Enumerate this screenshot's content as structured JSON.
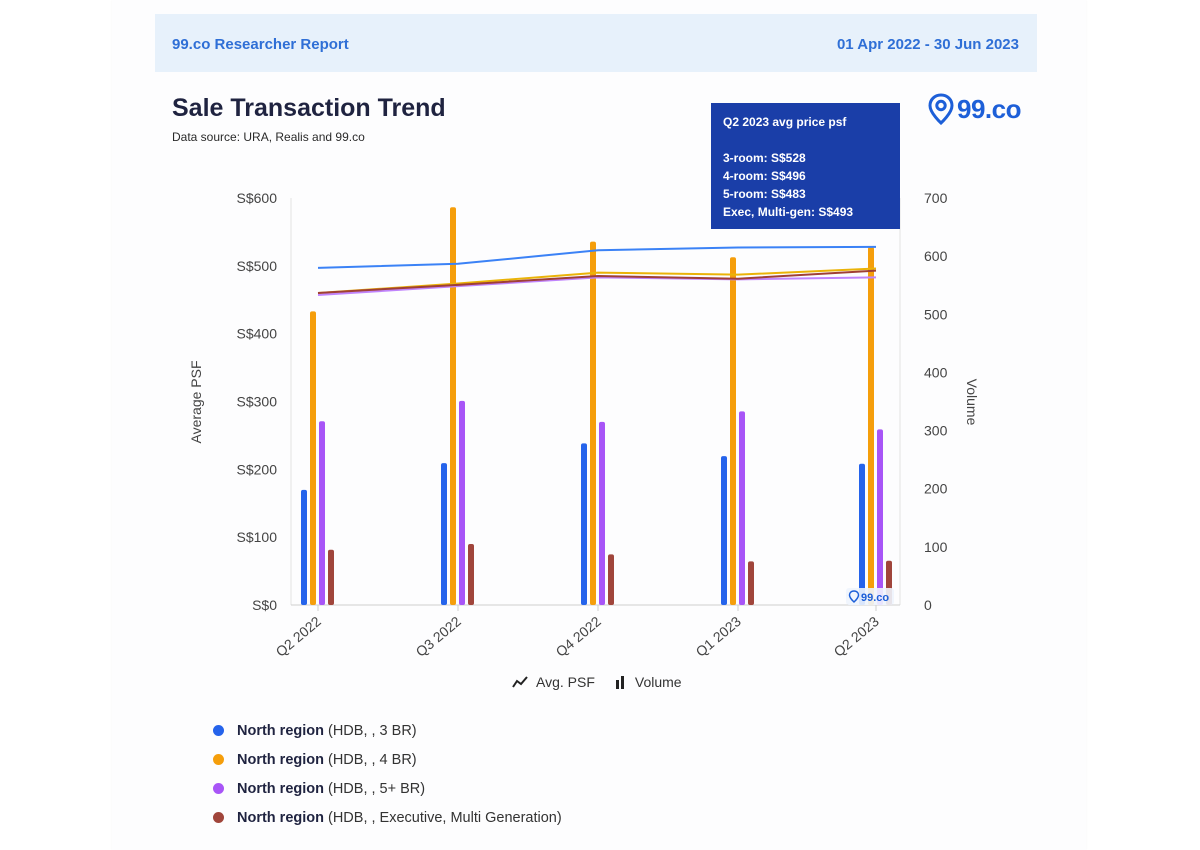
{
  "header": {
    "report_title": "99.co Researcher Report",
    "date_range": "01 Apr 2022 - 30 Jun 2023"
  },
  "logo": {
    "text": "99.co",
    "icon": "location-pin-icon",
    "color": "#1d5fd8"
  },
  "tooltip": {
    "heading": "Q2 2023 avg price psf",
    "lines": [
      "3-room: S$528",
      "4-room: S$496",
      "5-room: S$483",
      "Exec, Multi-gen: S$493"
    ]
  },
  "legend_types": {
    "line": "Avg. PSF",
    "bar": "Volume"
  },
  "series_legend": [
    {
      "region": "North region",
      "detail": "(HDB, , 3 BR)"
    },
    {
      "region": "North region",
      "detail": "(HDB, , 4 BR)"
    },
    {
      "region": "North region",
      "detail": "(HDB, , 5+ BR)"
    },
    {
      "region": "North region",
      "detail": "(HDB, , Executive, Multi Generation)"
    }
  ],
  "watermark": "99.co",
  "chart_data": {
    "type": "bar",
    "title": "Sale Transaction Trend",
    "subtitle": "Data source: URA, Realis and 99.co",
    "categories": [
      "Q2 2022",
      "Q3 2022",
      "Q4 2022",
      "Q1 2023",
      "Q2 2023"
    ],
    "y_left": {
      "label": "Average PSF",
      "range": [
        0,
        600
      ],
      "ticks": [
        "S$0",
        "S$100",
        "S$200",
        "S$300",
        "S$400",
        "S$500",
        "S$600"
      ]
    },
    "y_right": {
      "label": "Volume",
      "range": [
        0,
        700
      ],
      "ticks": [
        "0",
        "100",
        "200",
        "300",
        "400",
        "500",
        "600",
        "700"
      ]
    },
    "volume_series": [
      {
        "name": "3 BR",
        "color": "#2563eb",
        "values": [
          198,
          244,
          278,
          256,
          243
        ]
      },
      {
        "name": "4 BR",
        "color": "#f59e0b",
        "values": [
          505,
          684,
          625,
          598,
          616
        ]
      },
      {
        "name": "5+ BR",
        "color": "#a855f7",
        "values": [
          316,
          351,
          315,
          333,
          302
        ]
      },
      {
        "name": "Executive, Multi Generation",
        "color": "#a0453b",
        "values": [
          95,
          105,
          87,
          75,
          76
        ]
      }
    ],
    "psf_series": [
      {
        "name": "3 BR",
        "color": "#3b82f6",
        "values": [
          497,
          503,
          523,
          527,
          528
        ]
      },
      {
        "name": "4 BR",
        "color": "#eab308",
        "values": [
          460,
          474,
          490,
          487,
          496
        ]
      },
      {
        "name": "5+ BR",
        "color": "#c084fc",
        "values": [
          457,
          470,
          483,
          480,
          483
        ]
      },
      {
        "name": "Executive, Multi Generation",
        "color": "#9f3f36",
        "values": [
          460,
          472,
          485,
          481,
          493
        ]
      }
    ],
    "grid": false
  }
}
